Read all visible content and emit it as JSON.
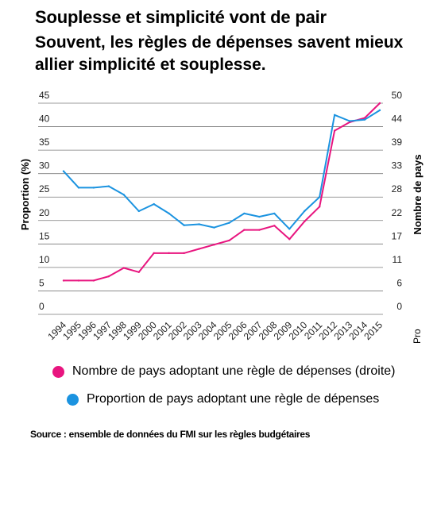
{
  "header": {
    "title": "Souplesse et simplicité vont de pair",
    "subtitle": "Souvent, les règles de dépenses savent mieux allier simplicité et souplesse."
  },
  "legend": {
    "pink_label": "Nombre de pays adoptant une règle de dépenses (droite)",
    "blue_label": "Proportion de pays adoptant une règle de dépenses"
  },
  "source": "Source : ensemble de données du FMI sur les règles budgétaires",
  "colors": {
    "pink": "#e8157f",
    "blue": "#1b93e0",
    "grid": "#7a7a7a"
  },
  "chart_data": {
    "type": "line",
    "ylabel": "Proportion (%)",
    "y2label": "Nombre de pays",
    "clipped_label": "Pro",
    "ylim": [
      0,
      45
    ],
    "y2lim": [
      0,
      50
    ],
    "yticks": [
      "0",
      "5",
      "10",
      "15",
      "20",
      "25",
      "30",
      "35",
      "40",
      "45"
    ],
    "y2ticks": [
      "0",
      "6",
      "11",
      "17",
      "22",
      "28",
      "33",
      "39",
      "44",
      "50"
    ],
    "grid": true,
    "legend_position": "bottom",
    "x": [
      "1994",
      "1995",
      "1996",
      "1997",
      "1998",
      "1999",
      "2000",
      "2001",
      "2002",
      "2003",
      "2004",
      "2005",
      "2006",
      "2007",
      "2008",
      "2009",
      "2010",
      "2011",
      "2012",
      "2013",
      "2014",
      "2015"
    ],
    "series": [
      {
        "name": "Nombre de pays adoptant une règle de dépenses (droite)",
        "axis": "right",
        "color": "#e8157f",
        "values": [
          8,
          8,
          8,
          9,
          11,
          10,
          14.5,
          14.5,
          14.5,
          15.5,
          16.5,
          17.5,
          20,
          20,
          21,
          17.8,
          22,
          25.5,
          43.5,
          45.5,
          46.5,
          50
        ]
      },
      {
        "name": "Proportion de pays adoptant une règle de dépenses",
        "axis": "left",
        "color": "#1b93e0",
        "values": [
          30.5,
          27,
          27,
          27.3,
          25.5,
          22,
          23.5,
          21.5,
          19,
          19.2,
          18.5,
          19.5,
          21.5,
          20.8,
          21.5,
          18.2,
          22,
          25,
          42.5,
          41.2,
          41.5,
          43.5
        ]
      }
    ]
  }
}
